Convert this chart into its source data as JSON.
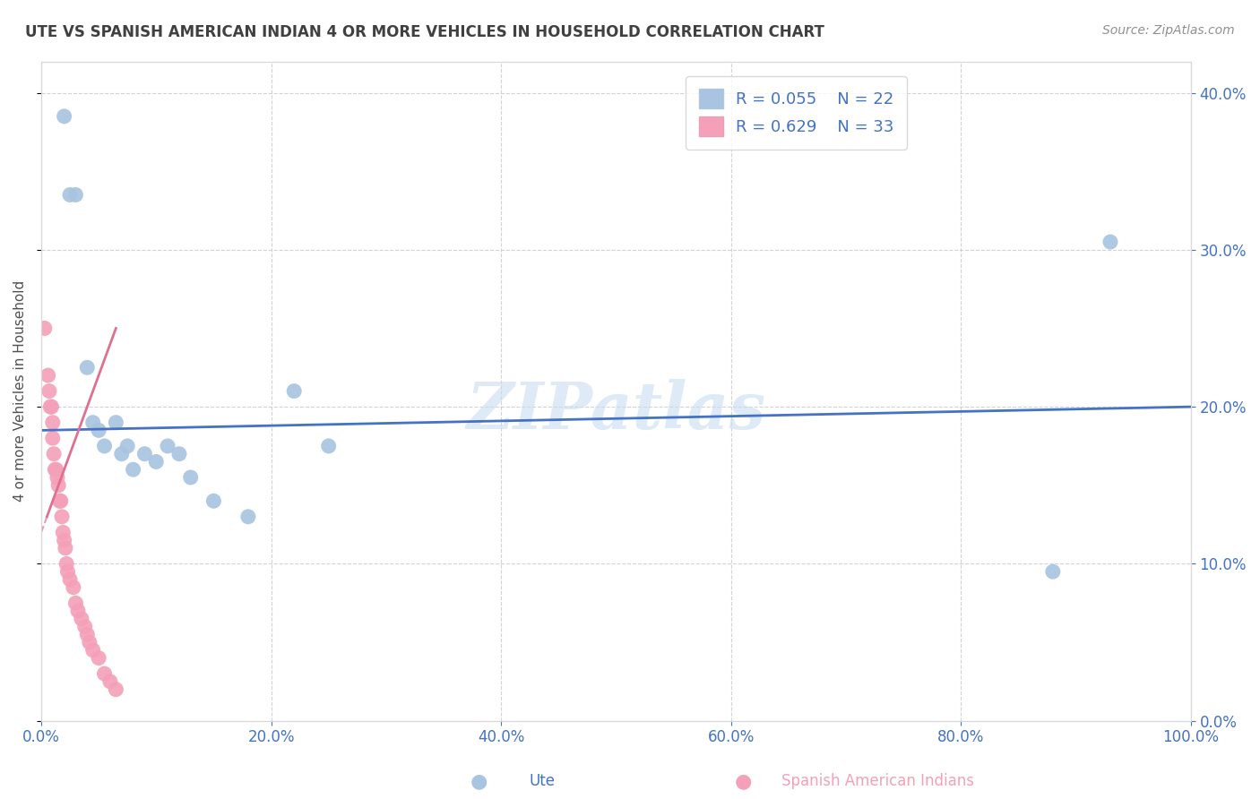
{
  "title": "UTE VS SPANISH AMERICAN INDIAN 4 OR MORE VEHICLES IN HOUSEHOLD CORRELATION CHART",
  "source": "Source: ZipAtlas.com",
  "ylabel": "4 or more Vehicles in Household",
  "legend_labels": [
    "Ute",
    "Spanish American Indians"
  ],
  "R_ute": 0.055,
  "N_ute": 22,
  "R_sai": 0.629,
  "N_sai": 33,
  "ute_color": "#a8c4e0",
  "sai_color": "#f4a0b8",
  "ute_line_color": "#4472c4",
  "sai_line_color": "#e07090",
  "title_color": "#404040",
  "axis_label_color": "#4472c4",
  "watermark_color": "#c8ddf0",
  "xlim": [
    0.0,
    1.0
  ],
  "ylim": [
    0.0,
    0.42
  ],
  "xticks": [
    0.0,
    0.2,
    0.4,
    0.6,
    0.8,
    1.0
  ],
  "yticks": [
    0.0,
    0.1,
    0.2,
    0.3,
    0.4
  ],
  "ute_x": [
    0.02,
    0.025,
    0.03,
    0.04,
    0.045,
    0.05,
    0.055,
    0.065,
    0.07,
    0.075,
    0.08,
    0.09,
    0.1,
    0.11,
    0.12,
    0.13,
    0.15,
    0.18,
    0.22,
    0.25,
    0.88,
    0.93
  ],
  "ute_y": [
    0.385,
    0.335,
    0.335,
    0.225,
    0.19,
    0.185,
    0.175,
    0.19,
    0.17,
    0.175,
    0.16,
    0.17,
    0.165,
    0.175,
    0.17,
    0.155,
    0.14,
    0.13,
    0.21,
    0.175,
    0.095,
    0.305
  ],
  "sai_x": [
    0.003,
    0.006,
    0.007,
    0.008,
    0.009,
    0.01,
    0.01,
    0.011,
    0.012,
    0.013,
    0.014,
    0.015,
    0.016,
    0.017,
    0.018,
    0.019,
    0.02,
    0.021,
    0.022,
    0.023,
    0.025,
    0.028,
    0.03,
    0.032,
    0.035,
    0.038,
    0.04,
    0.042,
    0.045,
    0.05,
    0.055,
    0.06,
    0.065
  ],
  "sai_y": [
    0.25,
    0.22,
    0.21,
    0.2,
    0.2,
    0.19,
    0.18,
    0.17,
    0.16,
    0.16,
    0.155,
    0.15,
    0.14,
    0.14,
    0.13,
    0.12,
    0.115,
    0.11,
    0.1,
    0.095,
    0.09,
    0.085,
    0.075,
    0.07,
    0.065,
    0.06,
    0.055,
    0.05,
    0.045,
    0.04,
    0.03,
    0.025,
    0.02
  ]
}
